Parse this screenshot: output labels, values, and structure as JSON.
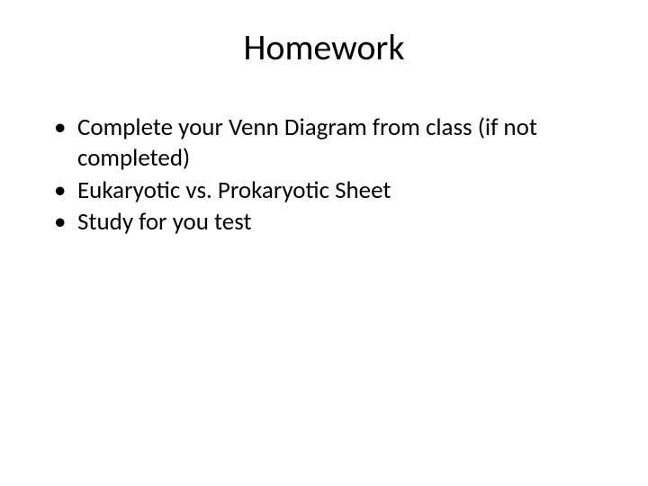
{
  "slide": {
    "title": "Homework",
    "title_fontsize": 40,
    "title_weight": 400,
    "title_align": "center",
    "body_fontsize": 27,
    "text_color": "#000000",
    "background_color": "#ffffff",
    "bullets": [
      "Complete your Venn Diagram from class (if not completed)",
      "Eukaryotic vs. Prokaryotic Sheet",
      "Study for you test"
    ]
  }
}
